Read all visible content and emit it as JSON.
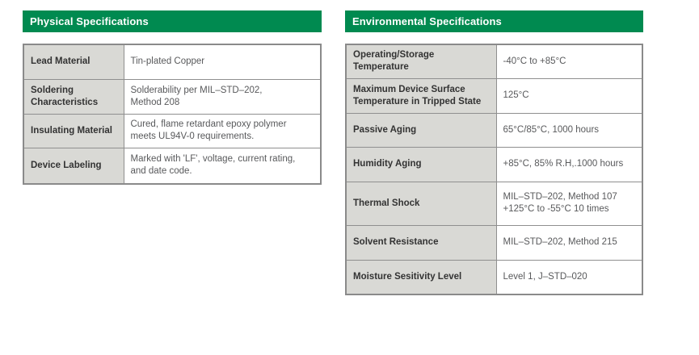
{
  "colors": {
    "header_green": "#008A50",
    "label_cell_bg": "#D9D9D5",
    "table_border": "#8A8A8A",
    "header_text": "#FFFFFF",
    "label_text": "#333333",
    "value_text": "#58595B"
  },
  "physical": {
    "title": "Physical Specifications",
    "rows": [
      {
        "label": "Lead Material",
        "value": "Tin-plated Copper"
      },
      {
        "label": "Soldering Characteristics",
        "value": "Solderability per MIL–STD–202,\nMethod 208"
      },
      {
        "label": "Insulating Material",
        "value": "Cured, flame retardant epoxy polymer\nmeets UL94V-0 requirements."
      },
      {
        "label": "Device Labeling",
        "value": "Marked with 'LF', voltage, current rating,\nand date code."
      }
    ]
  },
  "environmental": {
    "title": "Environmental Specifications",
    "rows": [
      {
        "label": "Operating/Storage\nTemperature",
        "value": "-40°C to +85°C"
      },
      {
        "label": "Maximum Device Surface\nTemperature in Tripped State",
        "value": "125°C"
      },
      {
        "label": "Passive Aging",
        "value": "65°C/85°C, 1000 hours"
      },
      {
        "label": "Humidity Aging",
        "value": "+85°C, 85% R.H,.1000 hours"
      },
      {
        "label": "Thermal Shock",
        "value": "MIL–STD–202, Method 107\n+125°C to -55°C 10 times"
      },
      {
        "label": "Solvent Resistance",
        "value": "MIL–STD–202, Method 215"
      },
      {
        "label": "Moisture Sesitivity Level",
        "value": "Level 1, J–STD–020"
      }
    ]
  }
}
